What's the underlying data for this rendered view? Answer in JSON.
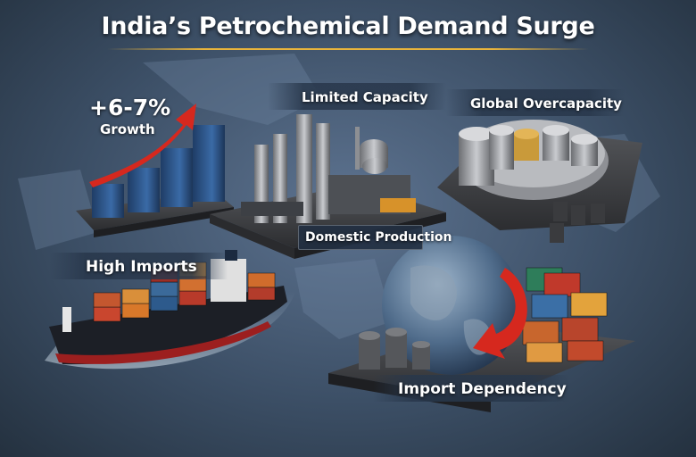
{
  "title": "India’s Petrochemical Demand Surge",
  "growth": {
    "value": "+6-7%",
    "caption": "Growth"
  },
  "labels": {
    "limited_capacity": "Limited Capacity",
    "global_overcapacity": "Global Overcapacity",
    "domestic_production": "Domestic Production",
    "high_imports": "High Imports",
    "import_dependency": "Import Dependency"
  },
  "colors": {
    "accent_gold": "#e8b43c",
    "arrow_red": "#d6281e",
    "bar_blue": "#2e5486",
    "ship_red": "#9c1f1f"
  }
}
